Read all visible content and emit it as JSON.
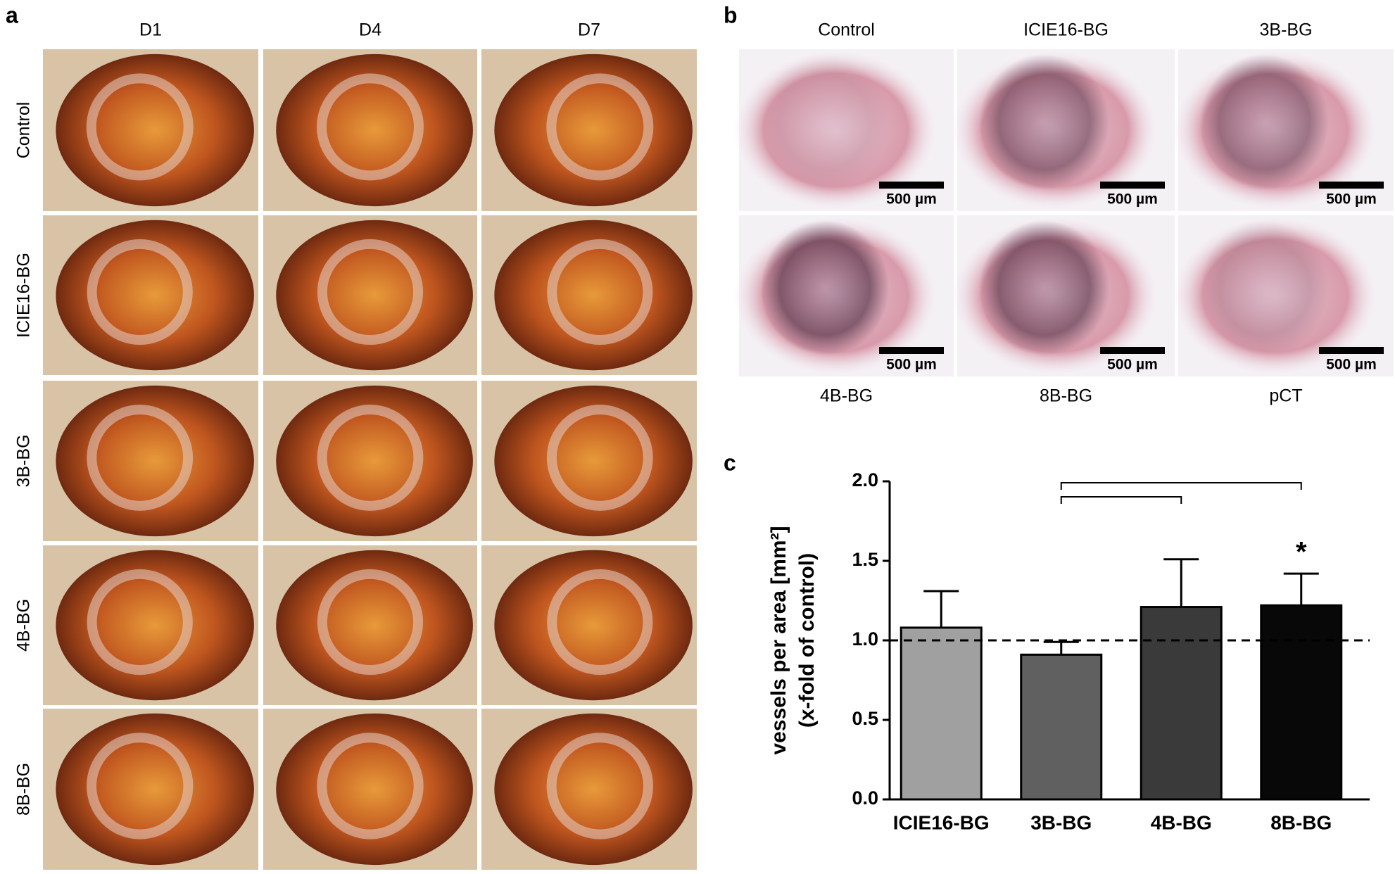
{
  "panels": {
    "a": {
      "label": "a",
      "columns": [
        "D1",
        "D4",
        "D7"
      ],
      "rows": [
        "Control",
        "ICIE16-BG",
        "3B-BG",
        "4B-BG",
        "8B-BG"
      ]
    },
    "b": {
      "label": "b",
      "top": [
        "Control",
        "ICIE16-BG",
        "3B-BG"
      ],
      "bottom": [
        "4B-BG",
        "8B-BG",
        "pCT"
      ],
      "scale_bar": "500 µm"
    },
    "c": {
      "label": "c"
    }
  },
  "chart_data": {
    "type": "bar",
    "y_label": [
      "vessels per area [mm²]",
      "(x-fold of control)"
    ],
    "categories": [
      "ICIE16-BG",
      "3B-BG",
      "4B-BG",
      "8B-BG"
    ],
    "values": [
      1.08,
      0.91,
      1.21,
      1.22
    ],
    "errors": [
      0.23,
      0.08,
      0.3,
      0.2
    ],
    "colors": [
      "#a0a0a0",
      "#606060",
      "#3a3a3a",
      "#080808"
    ],
    "ylim": [
      0,
      2
    ],
    "yticks": [
      {
        "value": 0,
        "label": "0.0"
      },
      {
        "value": 0.5,
        "label": "0.5"
      },
      {
        "value": 1,
        "label": "1.0"
      },
      {
        "value": 1.5,
        "label": "1.5"
      },
      {
        "value": 2,
        "label": "2.0"
      }
    ],
    "reference_line": 1,
    "brackets": [
      [
        "3B-BG",
        "8B-BG"
      ],
      [
        "3B-BG",
        "4B-BG"
      ]
    ],
    "annotations": [
      {
        "text": "*",
        "category": "8B-BG"
      }
    ]
  }
}
